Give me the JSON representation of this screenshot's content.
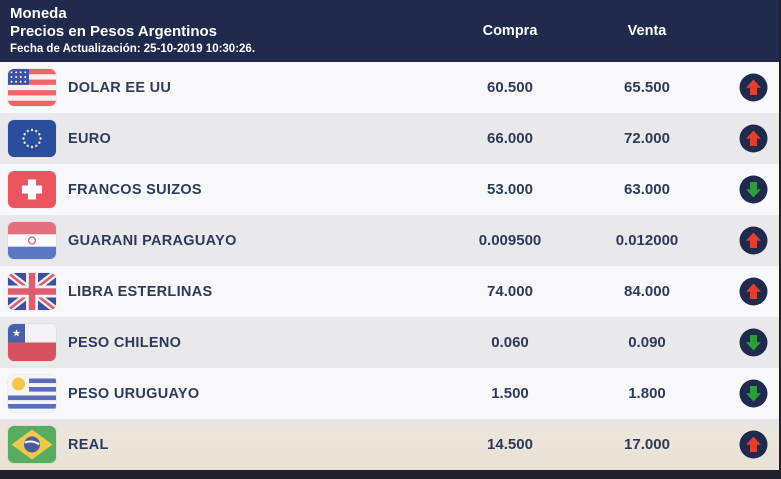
{
  "header": {
    "title": "Moneda",
    "subtitle": "Precios en Pesos Argentinos",
    "updated": "Fecha de Actualización: 25-10-2019 10:30:26.",
    "columns": {
      "compra": "Compra",
      "venta": "Venta"
    }
  },
  "colors": {
    "header_bg": "#1f2a4d",
    "row_odd": "#f8f8fa",
    "row_even": "#e9e9ec",
    "text": "#2c3a5c",
    "arrow_up": "#e23f2e",
    "arrow_down": "#2e9e3d",
    "arrow_circle": "#1f2a4d",
    "footer_bg": "#20202b"
  },
  "rows": [
    {
      "currency": "DOLAR EE UU",
      "flag_icon": "us-flag-icon",
      "compra": "60.500",
      "venta": "65.500",
      "trend": "up"
    },
    {
      "currency": "EURO",
      "flag_icon": "eu-flag-icon",
      "compra": "66.000",
      "venta": "72.000",
      "trend": "up"
    },
    {
      "currency": "FRANCOS SUIZOS",
      "flag_icon": "ch-flag-icon",
      "compra": "53.000",
      "venta": "63.000",
      "trend": "down"
    },
    {
      "currency": "GUARANI PARAGUAYO",
      "flag_icon": "py-flag-icon",
      "compra": "0.009500",
      "venta": "0.012000",
      "trend": "up"
    },
    {
      "currency": "LIBRA ESTERLINAS",
      "flag_icon": "gb-flag-icon",
      "compra": "74.000",
      "venta": "84.000",
      "trend": "up"
    },
    {
      "currency": "PESO CHILENO",
      "flag_icon": "cl-flag-icon",
      "compra": "0.060",
      "venta": "0.090",
      "trend": "down"
    },
    {
      "currency": "PESO URUGUAYO",
      "flag_icon": "uy-flag-icon",
      "compra": "1.500",
      "venta": "1.800",
      "trend": "down"
    },
    {
      "currency": "REAL",
      "flag_icon": "br-flag-icon",
      "compra": "14.500",
      "venta": "17.000",
      "trend": "up"
    }
  ]
}
